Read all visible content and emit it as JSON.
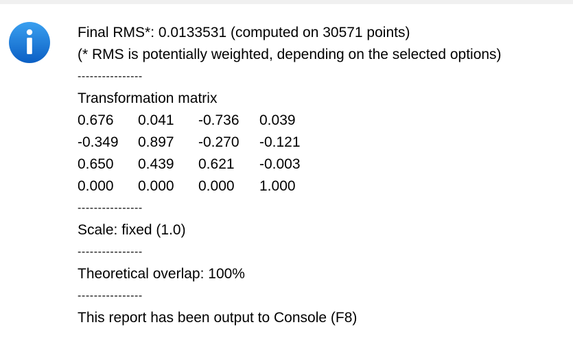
{
  "report": {
    "rms_line": "Final RMS*: 0.0133531 (computed on 30571 points)",
    "rms_note": "(* RMS is potentially weighted, depending on the selected options)",
    "separator": "----------------",
    "matrix_title": "Transformation matrix",
    "matrix": [
      [
        "0.676",
        "0.041",
        "-0.736",
        "0.039"
      ],
      [
        "-0.349",
        "0.897",
        "-0.270",
        "-0.121"
      ],
      [
        "0.650",
        "0.439",
        "0.621",
        "-0.003"
      ],
      [
        "0.000",
        "0.000",
        "0.000",
        "1.000"
      ]
    ],
    "scale_line": "Scale: fixed (1.0)",
    "overlap_line": "Theoretical overlap: 100%",
    "console_line": "This report has been output to Console (F8)"
  },
  "icon": {
    "name": "info-icon",
    "glyph": "i",
    "color": "#1a73d9"
  }
}
